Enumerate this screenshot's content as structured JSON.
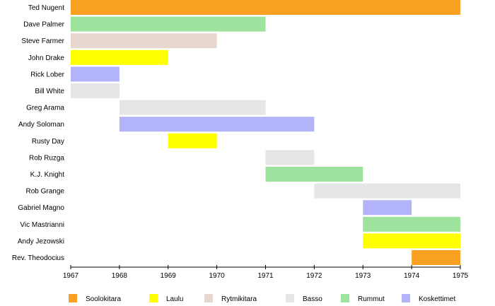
{
  "chart_data": {
    "type": "bar",
    "subtype": "timeline",
    "title": "",
    "xlabel": "",
    "ylabel": "",
    "xlim": [
      1967,
      1975
    ],
    "x_ticks": [
      "1967",
      "1968",
      "1969",
      "1970",
      "1971",
      "1972",
      "1973",
      "1974",
      "1975"
    ],
    "grid": false,
    "legend_position": "bottom",
    "roles": [
      {
        "key": "solo",
        "name": "Soolokitara",
        "color": "#F9A023"
      },
      {
        "key": "vocals",
        "name": "Laulu",
        "color": "#FFFF00"
      },
      {
        "key": "rhythm",
        "name": "Rytmikitara",
        "color": "#E6D7CF"
      },
      {
        "key": "bass",
        "name": "Basso",
        "color": "#E6E6E6"
      },
      {
        "key": "drums",
        "name": "Rummut",
        "color": "#9DE29D"
      },
      {
        "key": "keys",
        "name": "Koskettimet",
        "color": "#B3B3FA"
      }
    ],
    "members": [
      {
        "name": "Ted Nugent",
        "role": "solo",
        "start": 1967,
        "end": 1975
      },
      {
        "name": "Dave Palmer",
        "role": "drums",
        "start": 1967,
        "end": 1971
      },
      {
        "name": "Steve Farmer",
        "role": "rhythm",
        "start": 1967,
        "end": 1970
      },
      {
        "name": "John Drake",
        "role": "vocals",
        "start": 1967,
        "end": 1969
      },
      {
        "name": "Rick Lober",
        "role": "keys",
        "start": 1967,
        "end": 1968
      },
      {
        "name": "Bill White",
        "role": "bass",
        "start": 1967,
        "end": 1968
      },
      {
        "name": "Greg Arama",
        "role": "bass",
        "start": 1968,
        "end": 1971
      },
      {
        "name": "Andy Soloman",
        "role": "keys",
        "start": 1968,
        "end": 1972
      },
      {
        "name": "Rusty Day",
        "role": "vocals",
        "start": 1969,
        "end": 1970
      },
      {
        "name": "Rob Ruzga",
        "role": "bass",
        "start": 1971,
        "end": 1972
      },
      {
        "name": "K.J. Knight",
        "role": "drums",
        "start": 1971,
        "end": 1973
      },
      {
        "name": "Rob Grange",
        "role": "bass",
        "start": 1972,
        "end": 1975
      },
      {
        "name": "Gabriel Magno",
        "role": "keys",
        "start": 1973,
        "end": 1974
      },
      {
        "name": "Vic Mastrianni",
        "role": "drums",
        "start": 1973,
        "end": 1975
      },
      {
        "name": "Andy Jezowski",
        "role": "vocals",
        "start": 1973,
        "end": 1975
      },
      {
        "name": "Rev. Theodocius",
        "role": "solo",
        "start": 1974,
        "end": 1975
      }
    ]
  }
}
